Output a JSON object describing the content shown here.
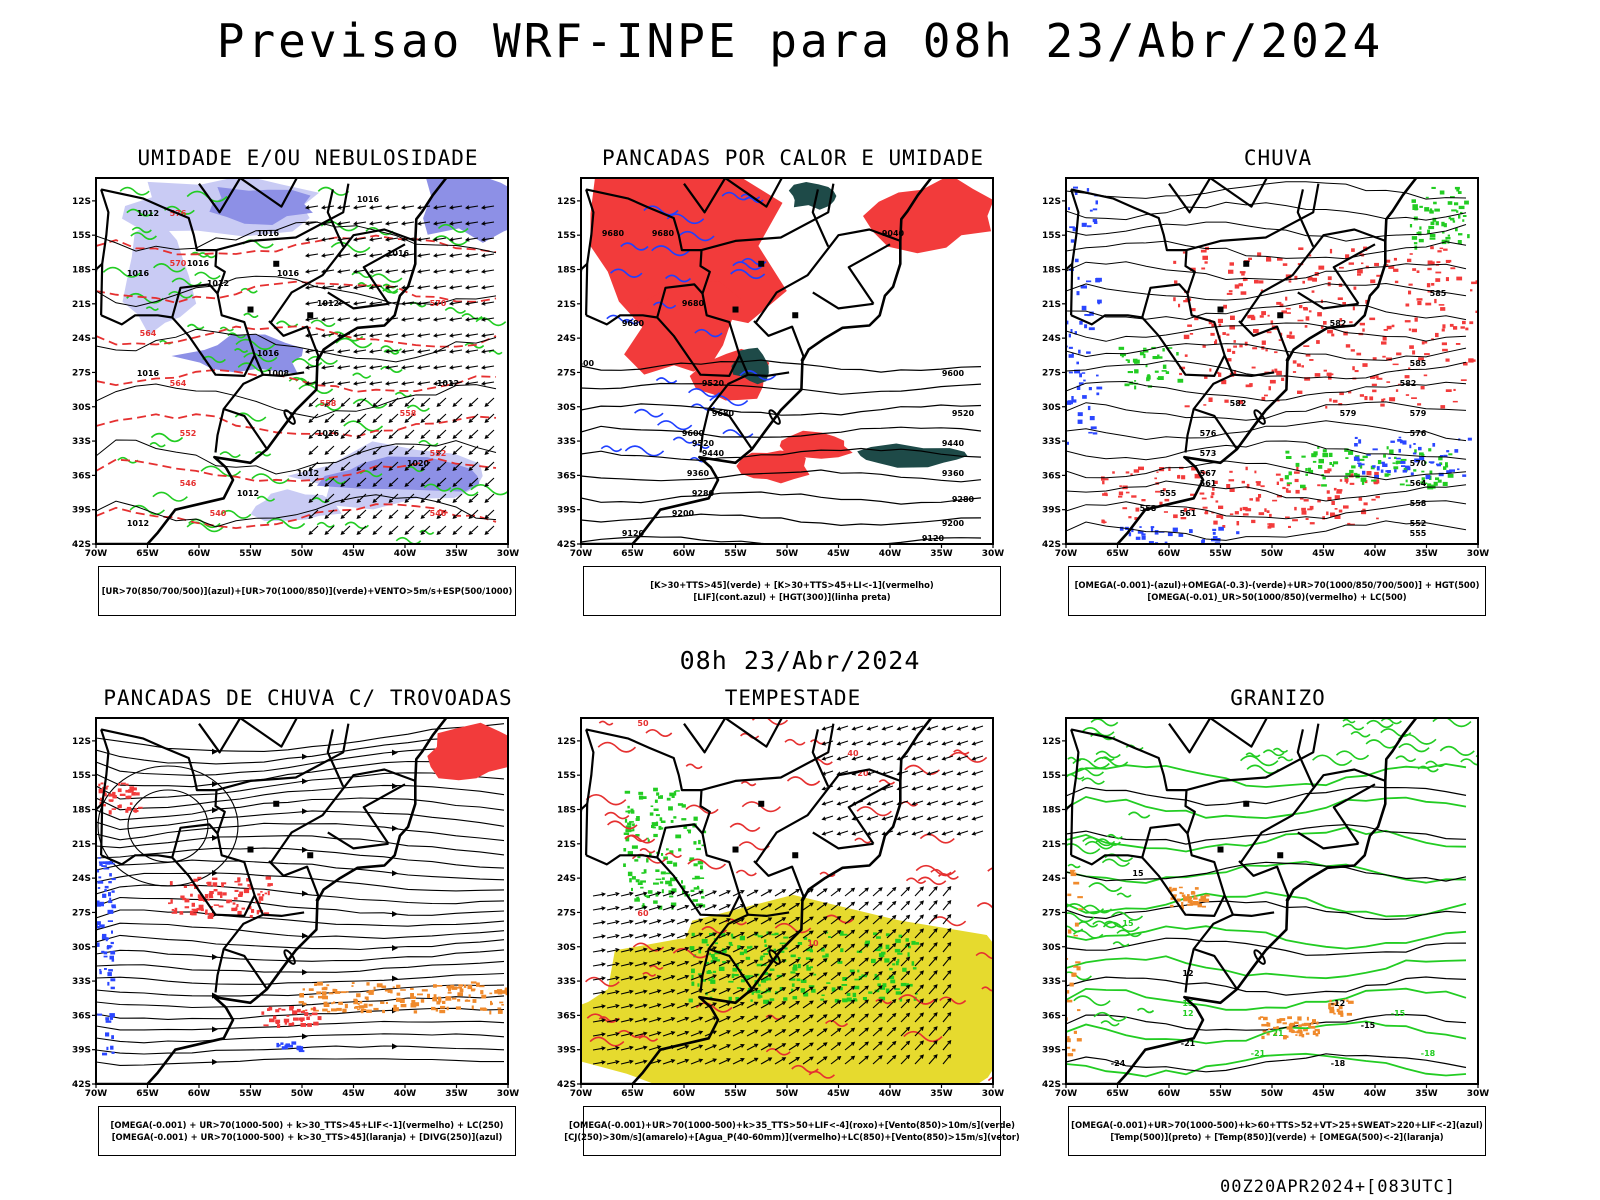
{
  "title": "Previsao WRF-INPE  para 08h 23/Abr/2024",
  "mid_title": "08h 23/Abr/2024",
  "footer": "00Z20APR2024+[083UTC]",
  "lat_ticks": [
    "12S",
    "15S",
    "18S",
    "21S",
    "24S",
    "27S",
    "30S",
    "33S",
    "36S",
    "39S",
    "42S"
  ],
  "lon_ticks": [
    "70W",
    "65W",
    "60W",
    "55W",
    "50W",
    "45W",
    "40W",
    "35W",
    "30W"
  ],
  "colors": {
    "red": "#f23b3b",
    "blue_shade": "#8d90e6",
    "green": "#22cc22",
    "yellow": "#e6da2e",
    "dark_teal": "#1e4a48",
    "orange": "#f08a2c",
    "blue": "#2a46ff",
    "light_blue": "#c9cbf4"
  },
  "panels": [
    {
      "title": "UMIDADE E/OU NEBULOSIDADE",
      "legend": [
        "[UR>70(850/700/500)](azul)+[UR>70(1000/850)](verde)+VENTO>5m/s+ESP(500/1000)"
      ],
      "labels": [
        "1016",
        "1012",
        "1016",
        "1016",
        "1016",
        "1012",
        "1016",
        "1016",
        "1012",
        "1016",
        "1008",
        "1016",
        "1012",
        "1016",
        "1020",
        "1012",
        "1012",
        "1012",
        "576",
        "570",
        "570",
        "564",
        "564",
        "558",
        "558",
        "552",
        "552",
        "546",
        "546",
        "540"
      ]
    },
    {
      "title": "PANCADAS POR CALOR E UMIDADE",
      "legend": [
        "[K>30+TTS>45](verde) + [K>30+TTS>45+LI<-1](vermelho)",
        "[LIF](cont.azul) + [HGT(300)](linha preta)"
      ],
      "labels": [
        "9680",
        "9680",
        "9680",
        "9680",
        "9600",
        "9520",
        "9680",
        "9600",
        "9520",
        "9440",
        "9360",
        "9280",
        "9200",
        "9120",
        "9040",
        "9600",
        "9520",
        "9440",
        "9360",
        "9280",
        "9200",
        "9120"
      ]
    },
    {
      "title": "CHUVA",
      "legend": [
        "[OMEGA(-0.001)-(azul)+OMEGA(-0.3)-(verde)+UR>70(1000/850/700/500)] + HGT(500)",
        "[OMEGA(-0.01)_UR>50(1000/850)(vermelho) + LC(500)"
      ],
      "labels": [
        "585",
        "585",
        "582",
        "582",
        "582",
        "579",
        "579",
        "576",
        "576",
        "573",
        "570",
        "567",
        "564",
        "561",
        "558",
        "555",
        "552",
        "561",
        "558",
        "555"
      ]
    },
    {
      "title": "PANCADAS DE CHUVA C/ TROVOADAS",
      "legend": [
        "[OMEGA(-0.001) + UR>70(1000-500) + k>30_TTS>45+LIF<-1](vermelho) + LC(250)",
        "[OMEGA(-0.001) + UR>70(1000-500) + k>30_TTS>45](laranja) + [DIVG(250)](azul)"
      ],
      "labels": []
    },
    {
      "title": "TEMPESTADE",
      "legend": [
        "[OMEGA(-0.001)+UR>70(1000-500)+k>35_TTS>50+LIF<-4](roxo)+[Vento(850)>10m/s](verde)",
        "[CJ(250)>30m/s](amarelo)+[Agua_P(40-60mm)](vermelho)+LC(850)+[Vento(850)>15m/s](vetor)"
      ],
      "labels": [
        "50",
        "60",
        "40",
        "20",
        "10"
      ]
    },
    {
      "title": "GRANIZO",
      "legend": [
        "[OMEGA(-0.001)+UR>70(1000-500)+k>60+TTS>52+VT>25+SWEAT>220+LIF<-2](azul)",
        "[Temp(500)](preto) + [Temp(850)](verde) + [OMEGA(500)<-2](laranja)"
      ],
      "labels": [
        "15",
        "12",
        "-12",
        "-15",
        "-18",
        "-21",
        "-24",
        "15",
        "15",
        "12",
        "21",
        "-21",
        "-15",
        "-18"
      ]
    }
  ]
}
